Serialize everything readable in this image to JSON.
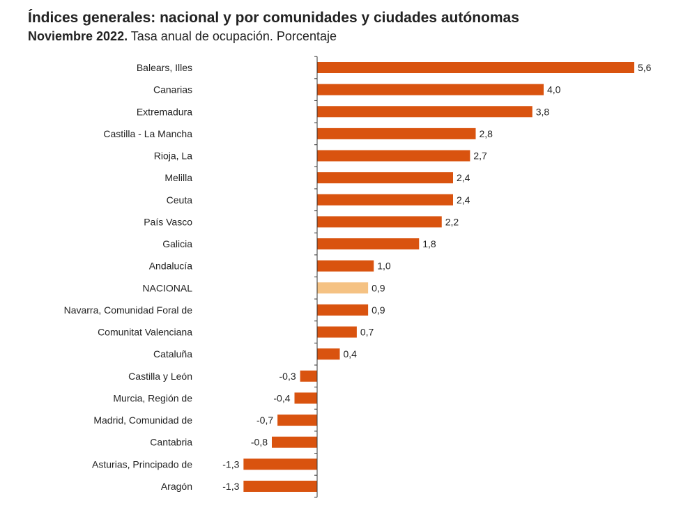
{
  "chart_data": {
    "type": "bar",
    "orientation": "horizontal",
    "title": "Índices generales: nacional y por comunidades y ciudades autónomas",
    "subtitle_bold": "Noviembre 2022.",
    "subtitle": "Tasa anual de ocupación. Porcentaje",
    "categories": [
      "Balears, Illes",
      "Canarias",
      "Extremadura",
      "Castilla - La Mancha",
      "Rioja, La",
      "Melilla",
      "Ceuta",
      "País Vasco",
      "Galicia",
      "Andalucía",
      "NACIONAL",
      "Navarra, Comunidad Foral de",
      "Comunitat Valenciana",
      "Cataluña",
      "Castilla y León",
      "Murcia, Región de",
      "Madrid, Comunidad de",
      "Cantabria",
      "Asturias, Principado de",
      "Aragón"
    ],
    "values": [
      5.6,
      4.0,
      3.8,
      2.8,
      2.7,
      2.4,
      2.4,
      2.2,
      1.8,
      1.0,
      0.9,
      0.9,
      0.7,
      0.4,
      -0.3,
      -0.4,
      -0.7,
      -0.8,
      -1.3,
      -1.3
    ],
    "value_labels": [
      "5,6",
      "4,0",
      "3,8",
      "2,8",
      "2,7",
      "2,4",
      "2,4",
      "2,2",
      "1,8",
      "1,0",
      "0,9",
      "0,9",
      "0,7",
      "0,4",
      "-0,3",
      "-0,4",
      "-0,7",
      "-0,8",
      "-1,3",
      "-1,3"
    ],
    "highlight_category": "NACIONAL",
    "colors": {
      "bar": "#d9530f",
      "highlight": "#f5c283",
      "axis": "#333333"
    },
    "xlim": [
      -1.3,
      5.6
    ],
    "grid": false,
    "legend": "none"
  }
}
